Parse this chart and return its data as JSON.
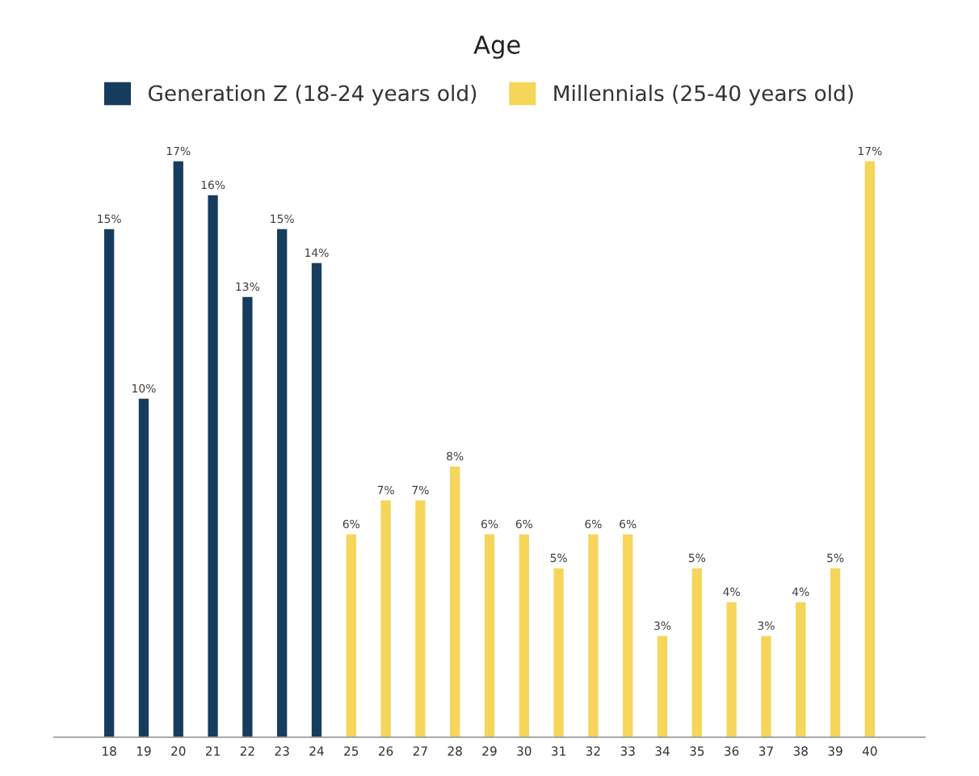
{
  "chart_data": {
    "type": "bar",
    "title": "Age",
    "legend": "top",
    "categories": [
      "18",
      "19",
      "20",
      "21",
      "22",
      "23",
      "24",
      "25",
      "26",
      "27",
      "28",
      "29",
      "30",
      "31",
      "32",
      "33",
      "34",
      "35",
      "36",
      "37",
      "38",
      "39",
      "40"
    ],
    "series": [
      {
        "name": "Generation Z (18-24 years old)",
        "color": "#173d5e",
        "values": [
          15,
          10,
          17,
          16,
          13,
          15,
          14,
          null,
          null,
          null,
          null,
          null,
          null,
          null,
          null,
          null,
          null,
          null,
          null,
          null,
          null,
          null,
          null
        ],
        "value_labels": [
          "15%",
          "10%",
          "17%",
          "16%",
          "13%",
          "15%",
          "14%",
          null,
          null,
          null,
          null,
          null,
          null,
          null,
          null,
          null,
          null,
          null,
          null,
          null,
          null,
          null,
          null
        ]
      },
      {
        "name": "Millennials (25-40 years old)",
        "color": "#f5d55a",
        "values": [
          null,
          null,
          null,
          null,
          null,
          null,
          null,
          6,
          7,
          7,
          8,
          6,
          6,
          5,
          6,
          6,
          3,
          5,
          4,
          3,
          4,
          5,
          17
        ],
        "value_labels": [
          null,
          null,
          null,
          null,
          null,
          null,
          null,
          "6%",
          "7%",
          "7%",
          "8%",
          "6%",
          "6%",
          "5%",
          "6%",
          "6%",
          "3%",
          "5%",
          "4%",
          "3%",
          "4%",
          "5%",
          "17%"
        ]
      }
    ],
    "grid": false
  }
}
